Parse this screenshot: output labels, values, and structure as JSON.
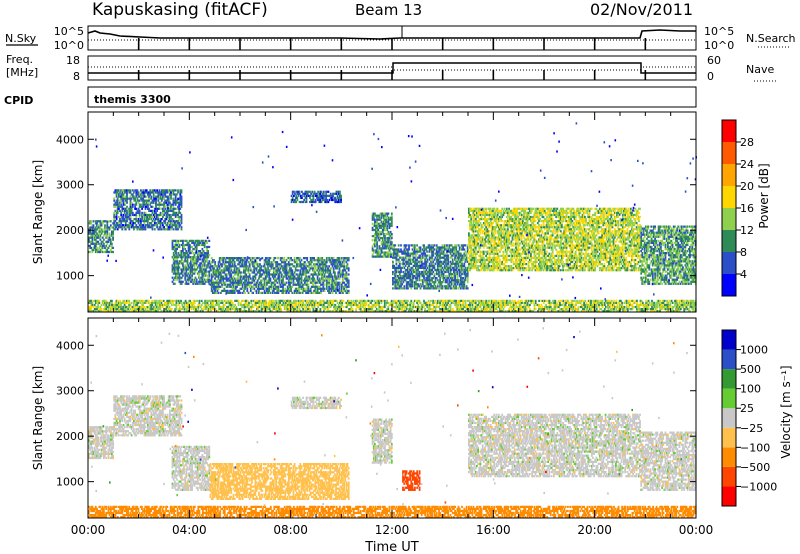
{
  "header": {
    "site": "Kapuskasing (fitACF)",
    "beam": "Beam 13",
    "date": "02/Nov/2011"
  },
  "status_panels": {
    "nsky_label": "N.Sky",
    "nsearch_label": "N.Search",
    "noise_ticks": [
      "10^5",
      "10^0"
    ],
    "freq_label": "Freq.",
    "freq_unit": "[MHz]",
    "freq_ticks": [
      "18",
      "8"
    ],
    "nave_label": "Nave",
    "nave_ticks": [
      "60",
      "0"
    ],
    "cpid_label": "CPID",
    "cpid_value": "themis 3300"
  },
  "colors": {
    "power_scale": [
      "#0000ff",
      "#2a4fc8",
      "#2e8b57",
      "#8fd14f",
      "#ffd700",
      "#ffa500",
      "#ff5a00",
      "#ff0000"
    ],
    "velocity_scale": [
      "#ff0000",
      "#ff4500",
      "#ff8c00",
      "#ffc04d",
      "#c8c8c8",
      "#66cc33",
      "#339933",
      "#2a4fc8",
      "#0000cc"
    ],
    "ground_scatter": "#c8c8c8"
  },
  "chart_data": [
    {
      "type": "heatmap",
      "title": "",
      "xlabel": "Time UT",
      "ylabel": "Slant Range [km]",
      "x_ticks": [
        "00:00",
        "04:00",
        "08:00",
        "12:00",
        "16:00",
        "20:00",
        "00:00"
      ],
      "y_ticks": [
        "1000",
        "2000",
        "3000",
        "4000"
      ],
      "ylim": [
        200,
        4600
      ],
      "colorbar_label": "Power [dB]",
      "colorbar_ticks": [
        "4",
        "8",
        "12",
        "16",
        "20",
        "24",
        "28"
      ],
      "scatter_regions": [
        {
          "t0": 0.0,
          "t1": 1.0,
          "r0": 1500,
          "r1": 2200,
          "level": 10
        },
        {
          "t0": 1.0,
          "t1": 3.7,
          "r0": 2000,
          "r1": 2900,
          "level": 8
        },
        {
          "t0": 3.3,
          "t1": 4.8,
          "r0": 800,
          "r1": 1800,
          "level": 9
        },
        {
          "t0": 4.8,
          "t1": 10.3,
          "r0": 600,
          "r1": 1400,
          "level": 9
        },
        {
          "t0": 8.0,
          "t1": 10.0,
          "r0": 2600,
          "r1": 2850,
          "level": 7
        },
        {
          "t0": 11.2,
          "t1": 12.0,
          "r0": 1400,
          "r1": 2400,
          "level": 10
        },
        {
          "t0": 12.0,
          "t1": 15.0,
          "r0": 700,
          "r1": 1700,
          "level": 9
        },
        {
          "t0": 15.0,
          "t1": 21.8,
          "r0": 1100,
          "r1": 2500,
          "level": 15
        },
        {
          "t0": 21.8,
          "t1": 24.0,
          "r0": 800,
          "r1": 2100,
          "level": 11
        },
        {
          "t0": 0.0,
          "t1": 24.0,
          "r0": 200,
          "r1": 450,
          "level": 14
        }
      ]
    },
    {
      "type": "heatmap",
      "title": "",
      "xlabel": "Time UT",
      "ylabel": "Slant Range [km]",
      "x_ticks": [
        "00:00",
        "04:00",
        "08:00",
        "12:00",
        "16:00",
        "20:00",
        "00:00"
      ],
      "y_ticks": [
        "1000",
        "2000",
        "3000",
        "4000"
      ],
      "ylim": [
        200,
        4600
      ],
      "colorbar_label": "Velocity [m s⁻¹]",
      "colorbar_ticks": [
        "1000",
        "500",
        "100",
        "25",
        "−25",
        "−100",
        "−500",
        "−1000"
      ],
      "scatter_regions": [
        {
          "t0": 0.0,
          "t1": 1.0,
          "r0": 1500,
          "r1": 2200,
          "level": 0
        },
        {
          "t0": 1.0,
          "t1": 3.7,
          "r0": 2000,
          "r1": 2900,
          "level": 0
        },
        {
          "t0": 3.3,
          "t1": 4.8,
          "r0": 800,
          "r1": 1800,
          "level": 0
        },
        {
          "t0": 4.8,
          "t1": 10.3,
          "r0": 600,
          "r1": 1400,
          "level": -60
        },
        {
          "t0": 8.0,
          "t1": 10.0,
          "r0": 2600,
          "r1": 2850,
          "level": 0
        },
        {
          "t0": 11.2,
          "t1": 12.0,
          "r0": 1400,
          "r1": 2400,
          "level": 0
        },
        {
          "t0": 12.4,
          "t1": 13.1,
          "r0": 800,
          "r1": 1250,
          "level": -400
        },
        {
          "t0": 15.0,
          "t1": 21.8,
          "r0": 1100,
          "r1": 2500,
          "level": 0
        },
        {
          "t0": 21.8,
          "t1": 24.0,
          "r0": 800,
          "r1": 2100,
          "level": 0
        },
        {
          "t0": 0.0,
          "t1": 24.0,
          "r0": 200,
          "r1": 450,
          "level": -200
        }
      ]
    }
  ]
}
